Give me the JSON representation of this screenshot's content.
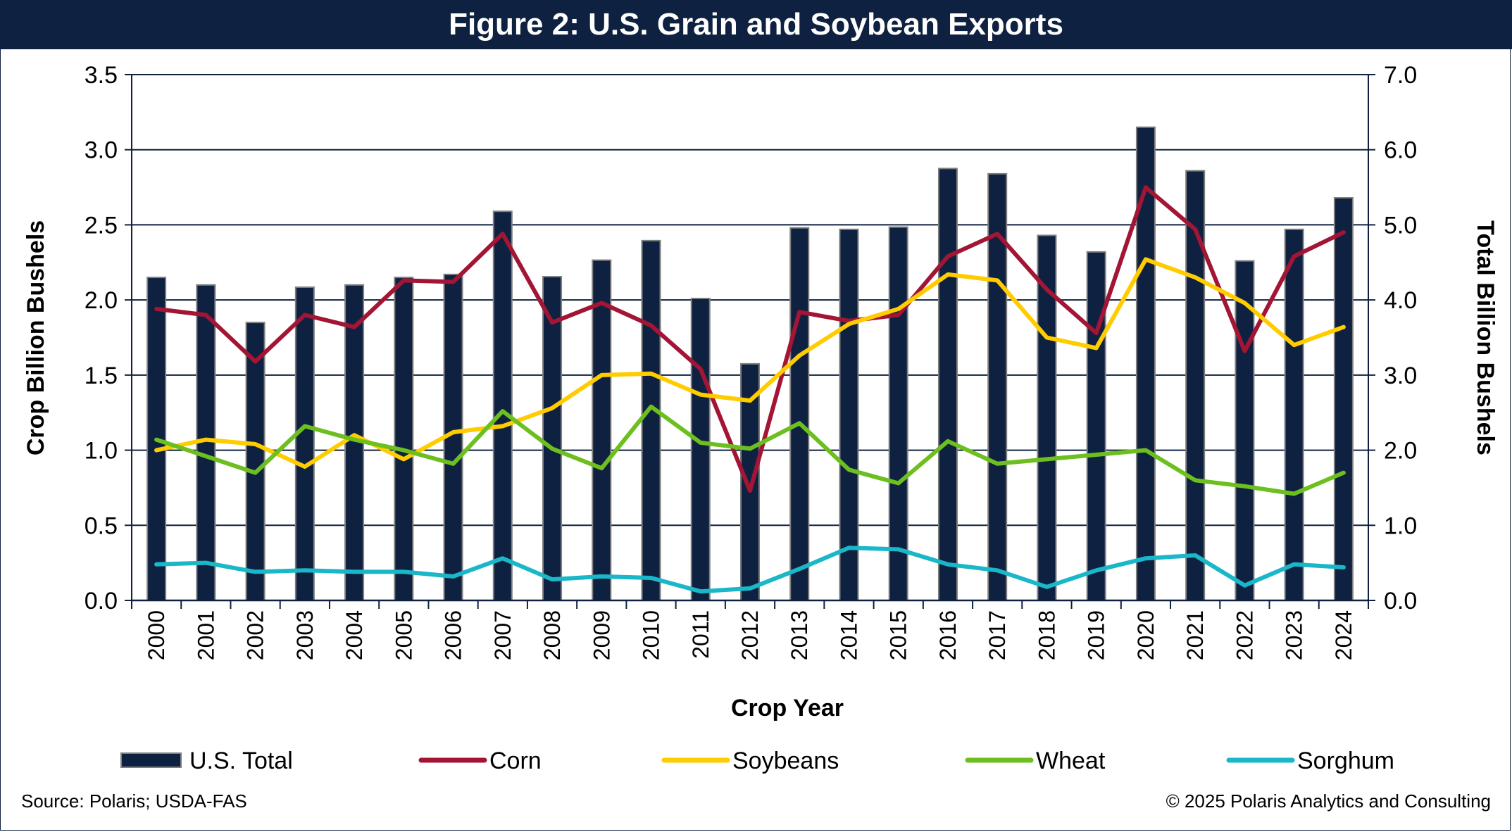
{
  "header": {
    "title": "Figure 2: U.S. Grain and Soybean Exports"
  },
  "footer": {
    "source": "Source: Polaris; USDA-FAS",
    "copyright": "© 2025 Polaris Analytics and Consulting"
  },
  "colors": {
    "title_bar": "#0f2140",
    "bar": "#0f2140",
    "corn": "#a31535",
    "soybeans": "#ffcc00",
    "wheat": "#6cbf1e",
    "sorghum": "#1ab7c9"
  },
  "chart_data": {
    "type": "bar",
    "title": "Figure 2: U.S. Grain and Soybean Exports",
    "xlabel": "Crop Year",
    "ylabel": "Crop Billion Bushels",
    "y2label": "Total Billion Bushels",
    "ylim": [
      0,
      3.5
    ],
    "y2lim": [
      0,
      7.0
    ],
    "yticks": [
      "0.0",
      "0.5",
      "1.0",
      "1.5",
      "2.0",
      "2.5",
      "3.0",
      "3.5"
    ],
    "y2ticks": [
      "0.0",
      "1.0",
      "2.0",
      "3.0",
      "4.0",
      "5.0",
      "6.0",
      "7.0"
    ],
    "grid": true,
    "legend_position": "bottom",
    "categories": [
      "2000",
      "2001",
      "2002",
      "2003",
      "2004",
      "2005",
      "2006",
      "2007",
      "2008",
      "2009",
      "2010",
      "2011",
      "2012",
      "2013",
      "2014",
      "2015",
      "2016",
      "2017",
      "2018",
      "2019",
      "2020",
      "2021",
      "2022",
      "2023",
      "2024"
    ],
    "series": [
      {
        "name": "U.S. Total",
        "type": "bar",
        "axis": "right",
        "values": [
          4.3,
          4.2,
          3.7,
          4.17,
          4.2,
          4.3,
          4.34,
          5.18,
          4.31,
          4.53,
          4.79,
          4.02,
          3.15,
          4.96,
          4.94,
          4.97,
          5.75,
          5.68,
          4.86,
          4.64,
          6.3,
          5.72,
          4.52,
          4.94,
          5.36
        ]
      },
      {
        "name": "Corn",
        "type": "line",
        "axis": "left",
        "values": [
          1.94,
          1.9,
          1.59,
          1.9,
          1.82,
          2.13,
          2.12,
          2.44,
          1.85,
          1.98,
          1.83,
          1.54,
          0.73,
          1.92,
          1.86,
          1.9,
          2.29,
          2.44,
          2.07,
          1.78,
          2.75,
          2.47,
          1.66,
          2.29,
          2.45
        ]
      },
      {
        "name": "Soybeans",
        "type": "line",
        "axis": "left",
        "values": [
          1.0,
          1.07,
          1.04,
          0.89,
          1.1,
          0.94,
          1.12,
          1.16,
          1.28,
          1.5,
          1.51,
          1.37,
          1.33,
          1.63,
          1.84,
          1.94,
          2.17,
          2.13,
          1.75,
          1.68,
          2.27,
          2.15,
          1.98,
          1.7,
          1.82
        ]
      },
      {
        "name": "Wheat",
        "type": "line",
        "axis": "left",
        "values": [
          1.07,
          0.96,
          0.85,
          1.16,
          1.07,
          1.0,
          0.91,
          1.26,
          1.01,
          0.88,
          1.29,
          1.05,
          1.01,
          1.18,
          0.87,
          0.78,
          1.06,
          0.91,
          0.94,
          0.97,
          1.0,
          0.8,
          0.76,
          0.71,
          0.85
        ]
      },
      {
        "name": "Sorghum",
        "type": "line",
        "axis": "left",
        "values": [
          0.24,
          0.25,
          0.19,
          0.2,
          0.19,
          0.19,
          0.16,
          0.28,
          0.14,
          0.16,
          0.15,
          0.06,
          0.08,
          0.21,
          0.35,
          0.34,
          0.24,
          0.2,
          0.09,
          0.2,
          0.28,
          0.3,
          0.1,
          0.24,
          0.22
        ]
      }
    ]
  }
}
